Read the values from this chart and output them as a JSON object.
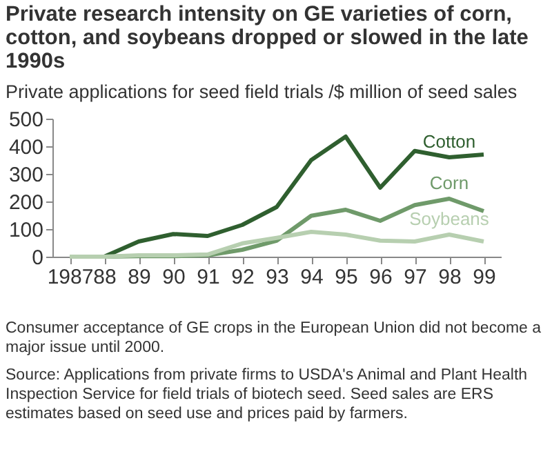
{
  "chart_data": {
    "type": "line",
    "title": "Private research intensity on GE varieties of corn, cotton, and soybeans dropped or slowed in the late 1990s",
    "ylabel": "Private applications for seed field trials /$ million of seed sales",
    "categories": [
      "1987",
      "88",
      "89",
      "90",
      "91",
      "92",
      "93",
      "94",
      "95",
      "96",
      "97",
      "98",
      "99"
    ],
    "series": [
      {
        "name": "Cotton",
        "color": "#2f5f2f",
        "values": [
          0,
          0,
          55,
          82,
          75,
          115,
          180,
          350,
          435,
          250,
          383,
          360,
          370
        ]
      },
      {
        "name": "Corn",
        "color": "#6f9a6a",
        "values": [
          0,
          0,
          2,
          2,
          5,
          25,
          58,
          148,
          170,
          130,
          187,
          210,
          165
        ]
      },
      {
        "name": "Soybeans",
        "color": "#b7cfb0",
        "values": [
          0,
          0,
          5,
          5,
          8,
          48,
          68,
          90,
          80,
          58,
          55,
          80,
          55
        ]
      }
    ],
    "ylim": [
      0,
      500
    ],
    "yticks": [
      0,
      100,
      200,
      300,
      400,
      500
    ],
    "grid": false,
    "legend": false,
    "marker": "none",
    "line_style": "solid",
    "annotations": [
      "Consumer acceptance of GE crops in the European Union did not become a major issue until 2000.",
      "Source:  Applications from private firms to USDA's Animal and Plant Health Inspection Service for field trials of biotech seed. Seed sales are ERS estimates based on seed use and prices paid by farmers."
    ]
  }
}
